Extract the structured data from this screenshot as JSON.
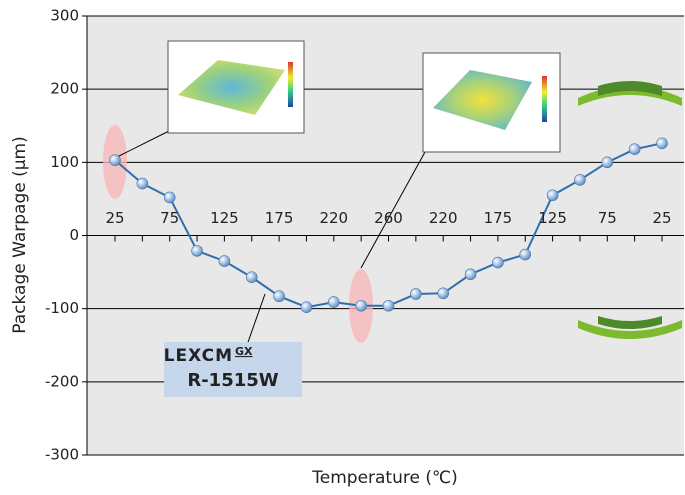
{
  "chart_data": {
    "type": "line",
    "ylabel": "Package Warpage (μm)",
    "xlabel": "Temperature (℃)",
    "categories": [
      "25",
      null,
      "75",
      null,
      "125",
      null,
      "175",
      null,
      "220",
      null,
      "260",
      null,
      "220",
      null,
      "175",
      null,
      "125",
      null,
      "75",
      null,
      "25"
    ],
    "series": [
      {
        "name": "R-1515W",
        "color": "#2f6fb0",
        "values": [
          103,
          71,
          52,
          -21,
          -35,
          -57,
          -83,
          -98,
          -91,
          -96,
          -96,
          -80,
          -79,
          -53,
          -37,
          -26,
          55,
          76,
          100,
          118,
          126
        ]
      }
    ],
    "ylim": [
      -300,
      300
    ],
    "yticks": [
      -300,
      -200,
      -100,
      0,
      100,
      200,
      300
    ],
    "grid": true,
    "annotations": {
      "brand": "LEXCM",
      "brand_sup": "GX",
      "product": "R-1515W"
    }
  }
}
